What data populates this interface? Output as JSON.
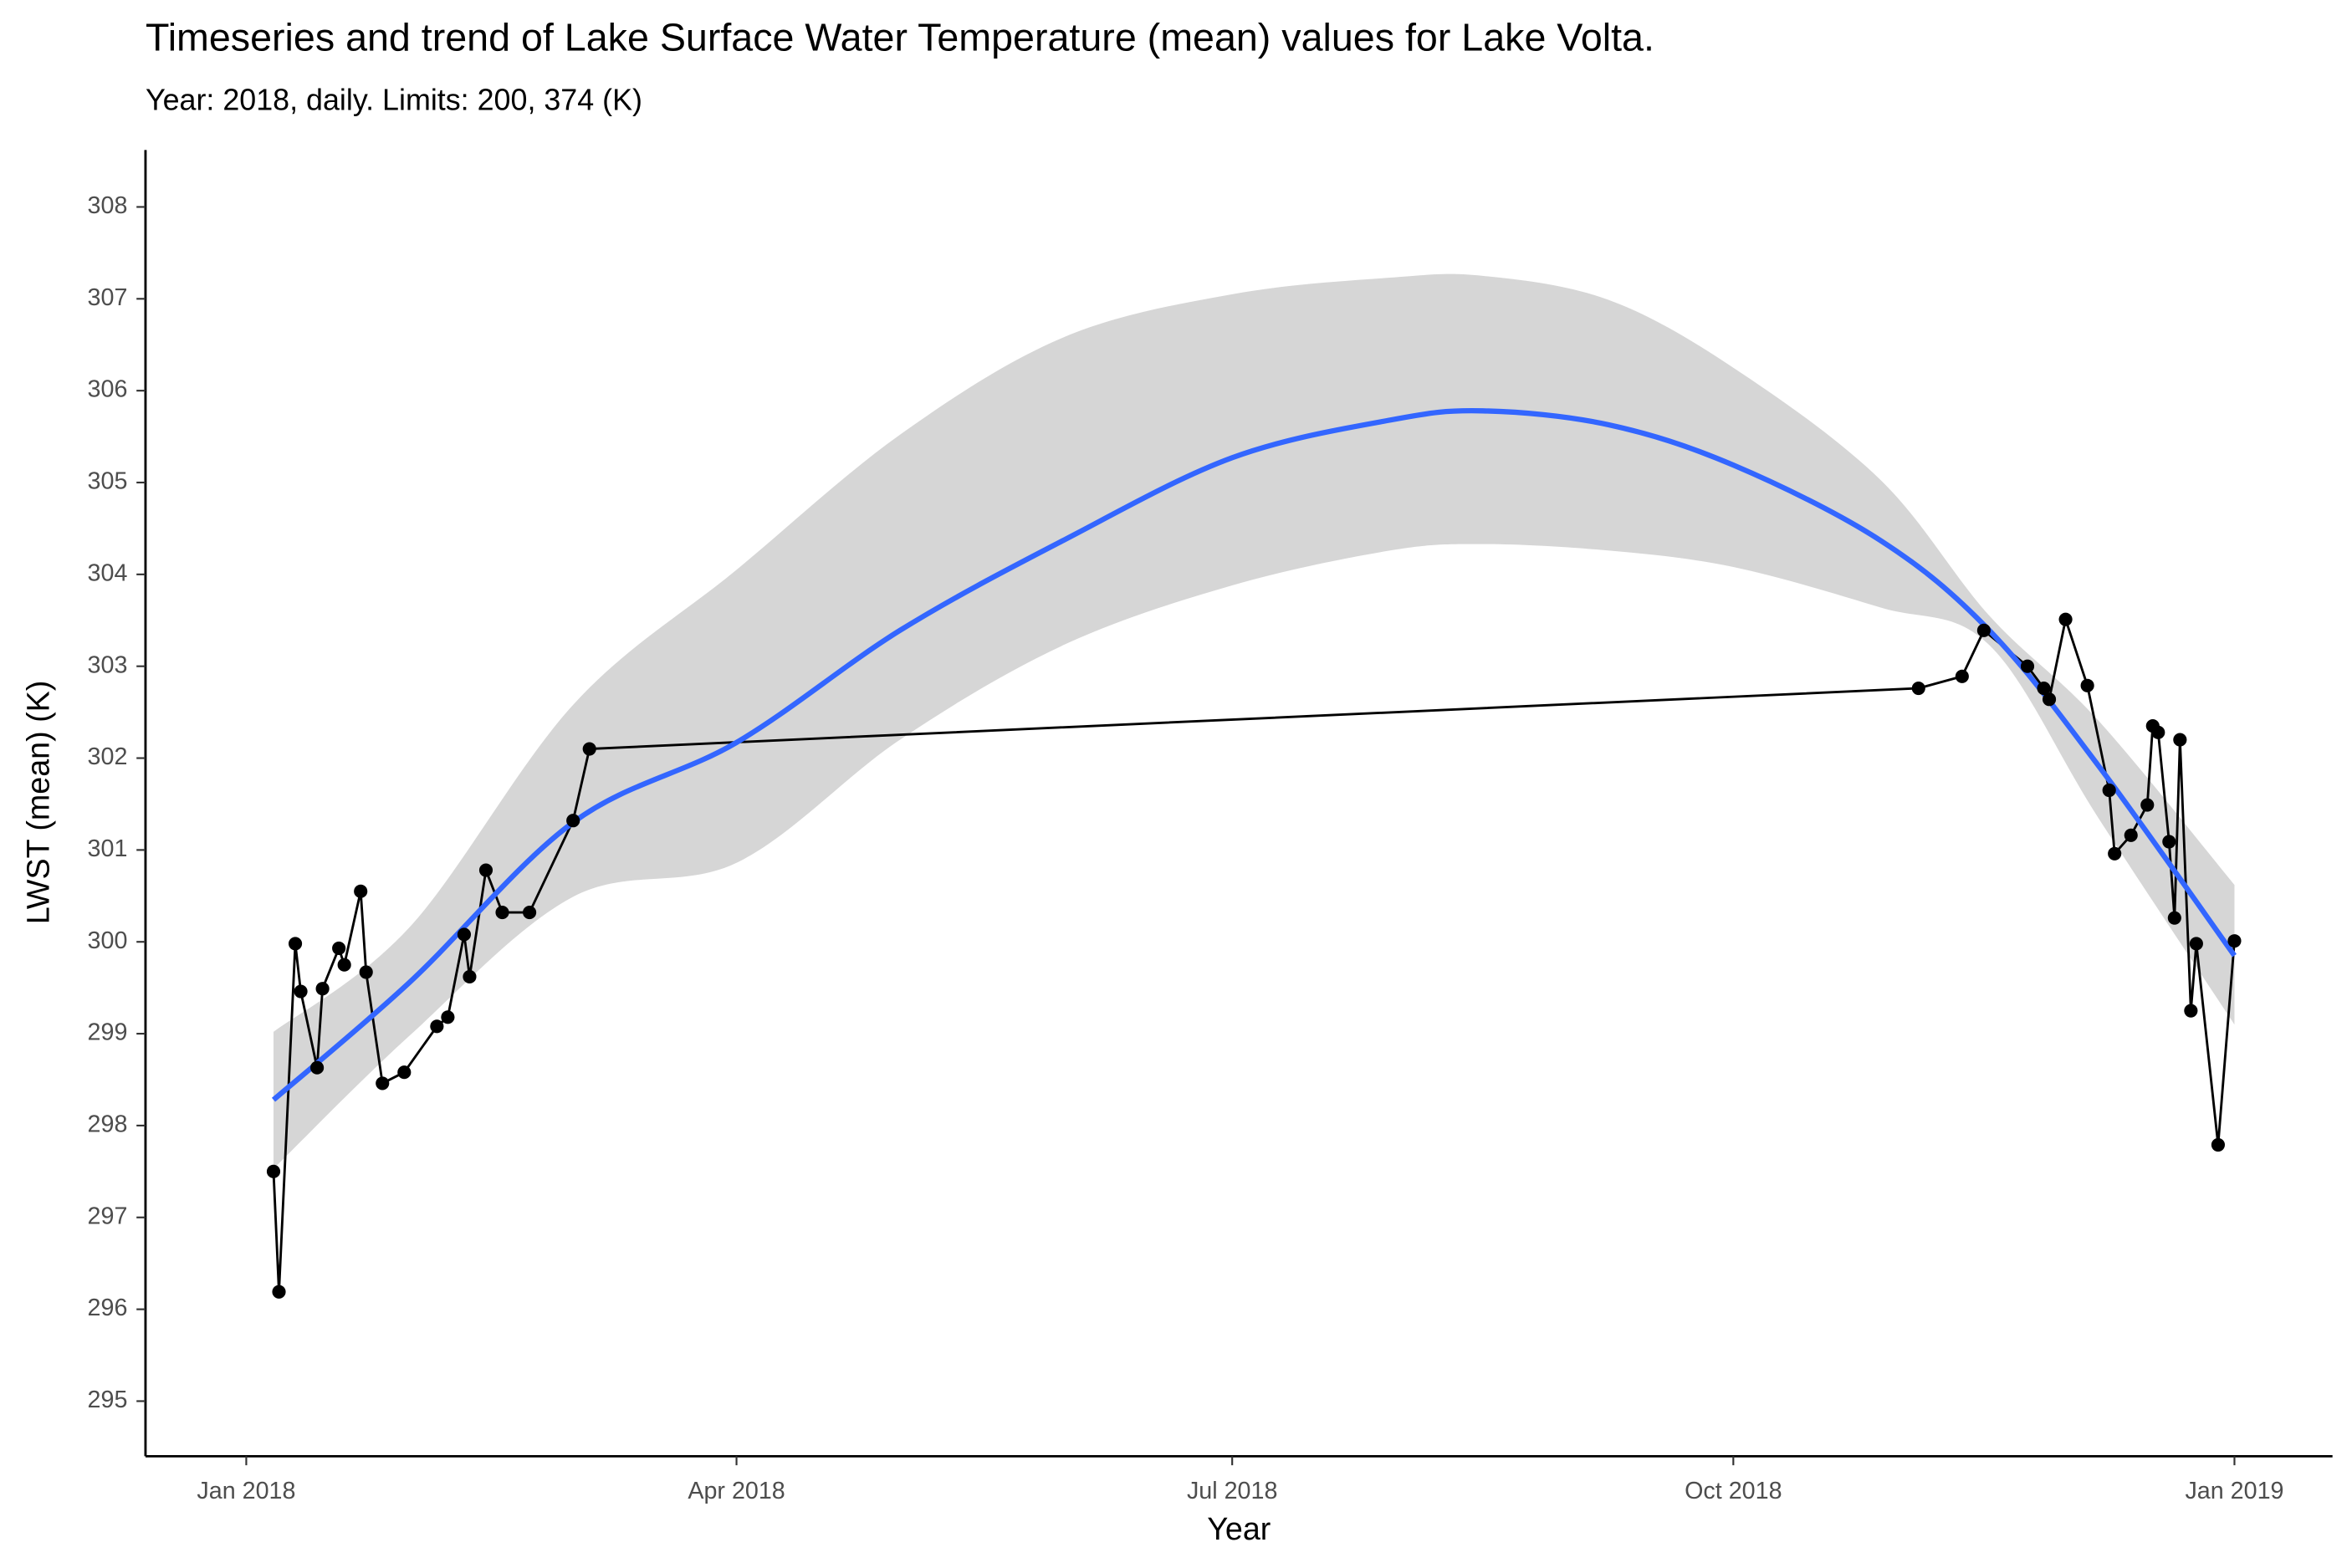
{
  "chart_data": {
    "type": "line",
    "title": "Timeseries and trend of Lake Surface Water Temperature (mean) values for Lake Volta.",
    "subtitle": "Year: 2018, daily. Limits: 200, 374 (K)",
    "x_label": "Year",
    "y_label": "LWST (mean) (K)",
    "x": [
      5,
      6,
      9,
      10,
      13,
      14,
      17,
      18,
      21,
      22,
      25,
      29,
      35,
      37,
      40,
      41,
      44,
      47,
      52,
      60,
      63,
      307,
      315,
      319,
      327,
      330,
      331,
      334,
      338,
      342,
      343,
      346,
      349,
      350,
      351,
      353,
      354,
      355,
      357,
      358,
      362,
      365
    ],
    "values": [
      297.5,
      296.19,
      299.98,
      299.46,
      298.63,
      299.49,
      299.93,
      299.75,
      300.55,
      299.67,
      298.46,
      298.58,
      299.08,
      299.18,
      300.08,
      299.62,
      300.78,
      300.32,
      300.32,
      301.32,
      302.1,
      302.76,
      302.89,
      303.39,
      303.0,
      302.76,
      302.64,
      303.51,
      302.79,
      301.65,
      300.96,
      301.16,
      301.49,
      302.35,
      302.28,
      301.09,
      300.26,
      302.2,
      299.25,
      299.98,
      297.79,
      300.01
    ],
    "color": "#000000",
    "trend": {
      "x": [
        5,
        30,
        60,
        90,
        120,
        150,
        181,
        210,
        227,
        250,
        273,
        300,
        320,
        340,
        365
      ],
      "values": [
        298.28,
        299.56,
        301.3,
        302.17,
        303.39,
        304.37,
        305.27,
        305.68,
        305.78,
        305.63,
        305.19,
        304.37,
        303.39,
        301.92,
        299.85
      ],
      "lower": [
        297.53,
        298.98,
        300.49,
        300.86,
        302.2,
        303.23,
        303.88,
        304.26,
        304.33,
        304.26,
        304.08,
        303.64,
        303.23,
        301.35,
        299.1
      ],
      "upper": [
        299.02,
        300.16,
        302.58,
        304.05,
        305.52,
        306.58,
        307.05,
        307.23,
        307.25,
        306.99,
        306.25,
        305.03,
        303.55,
        302.41,
        300.62
      ],
      "color": "#3366ff",
      "ribbon_color": "#d6d6d6"
    },
    "xlim": [
      -18.5,
      383
    ],
    "xticks": [
      {
        "value": 0,
        "label": "Jan 2018"
      },
      {
        "value": 90,
        "label": "Apr 2018"
      },
      {
        "value": 181,
        "label": "Jul 2018"
      },
      {
        "value": 273,
        "label": "Oct 2018"
      },
      {
        "value": 365,
        "label": "Jan 2019"
      }
    ],
    "ylim": [
      294.4,
      308.62
    ],
    "yticks": [
      295,
      296,
      297,
      298,
      299,
      300,
      301,
      302,
      303,
      304,
      305,
      306,
      307,
      308
    ],
    "grid": false
  }
}
